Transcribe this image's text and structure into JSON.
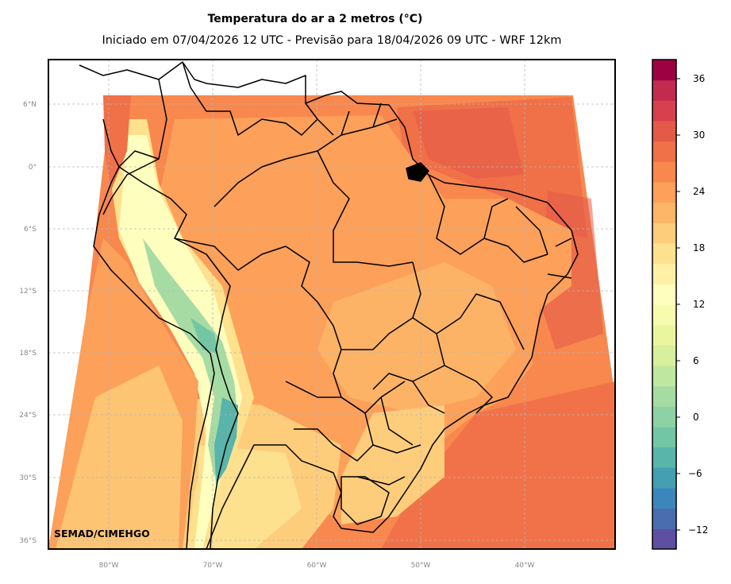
{
  "title": "Temperatura do ar a 2 metros (°C)",
  "subtitle": "Iniciado em 07/04/2026 12 UTC - Previsão para 18/04/2026 09 UTC - WRF 12km",
  "credit": "SEMAD/CIMEHGO",
  "lat_ticks": [
    "6°N",
    "0°",
    "6°S",
    "12°S",
    "18°S",
    "24°S",
    "30°S",
    "36°S"
  ],
  "lon_ticks": [
    "80°W",
    "70°W",
    "60°W",
    "50°W",
    "40°W"
  ],
  "colorbar": {
    "ticks": [
      "36",
      "30",
      "24",
      "18",
      "12",
      "6",
      "0",
      "−6",
      "−12"
    ],
    "colors": [
      "#5e4fa2",
      "#4a6db0",
      "#3b86bc",
      "#449fb2",
      "#59b4aa",
      "#72c6a6",
      "#8dd2a4",
      "#a6dca4",
      "#c0e7a0",
      "#d8ef9b",
      "#eaf69e",
      "#f7fbb0",
      "#fefebf",
      "#fff0a6",
      "#fee18f",
      "#fdcd7b",
      "#fdb567",
      "#fca05a",
      "#f8884e",
      "#f07048",
      "#e45a49",
      "#d7414e",
      "#c22a4e",
      "#9e0142"
    ]
  },
  "palette": {
    "ocean_warm": "#f46d43",
    "ocean_hot": "#e8573f",
    "land_main": "#fca05a",
    "land_pale": "#fdcd7b",
    "land_light": "#fee18f",
    "andes_cold": "#59b4aa",
    "andes_cool": "#a6dca4"
  }
}
